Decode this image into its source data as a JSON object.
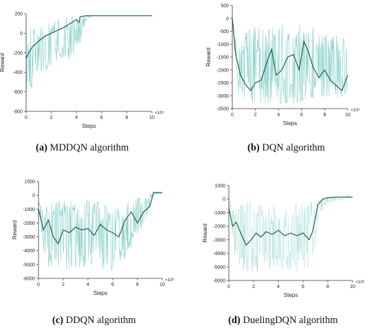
{
  "colors": {
    "noise": "#8fd3cc",
    "smooth": "#1f5d45",
    "axis": "#333333"
  },
  "chart_data": [
    {
      "type": "line",
      "caption_letter": "(a)",
      "caption_text": " MDDQN algorithm",
      "xlabel": "Steps",
      "ylabel": "Reward",
      "x_multiplier": "×10⁵",
      "xlim": [
        0,
        10
      ],
      "ylim": [
        -800,
        200
      ],
      "x_ticks": [
        "0",
        "2",
        "4",
        "6",
        "8",
        "10"
      ],
      "y_ticks": [
        "200",
        "0",
        "-200",
        "-400",
        "-600",
        "-800"
      ],
      "noise_range": {
        "x": [
          0.0,
          0.3,
          0.6,
          1.0,
          1.5,
          2.0,
          2.5,
          3.0,
          3.5,
          4.0,
          4.3,
          4.8,
          5.5,
          7.0,
          8.0,
          10.0
        ],
        "low": [
          -650,
          -780,
          -500,
          -450,
          -400,
          -350,
          -300,
          -250,
          -300,
          -200,
          -100,
          150,
          180,
          180,
          180,
          180
        ],
        "high": [
          40,
          80,
          60,
          80,
          100,
          120,
          140,
          160,
          180,
          180,
          180,
          180,
          180,
          180,
          180,
          180
        ]
      },
      "series": [
        {
          "x": [
            0.0,
            0.2,
            0.5,
            1.0,
            1.5,
            2.0,
            2.5,
            3.0,
            3.5,
            4.0,
            4.2,
            4.3,
            4.8,
            5.5,
            7.0,
            8.5,
            10.0
          ],
          "values": [
            -260,
            -200,
            -140,
            -80,
            -30,
            0,
            30,
            60,
            100,
            140,
            110,
            170,
            180,
            180,
            180,
            180,
            180
          ]
        }
      ]
    },
    {
      "type": "line",
      "caption_letter": "(b)",
      "caption_text": " DQN algorithm",
      "xlabel": "Steps",
      "ylabel": "Reward",
      "x_multiplier": "×10⁵",
      "xlim": [
        0,
        10
      ],
      "ylim": [
        -3500,
        500
      ],
      "x_ticks": [
        "0",
        "2",
        "4",
        "6",
        "8",
        "10"
      ],
      "y_ticks": [
        "500",
        "0",
        "-500",
        "-1000",
        "-1500",
        "-2000",
        "-2500",
        "-3000",
        "-3500"
      ],
      "noise_range": {
        "x": [
          0.0,
          0.5,
          1.0,
          2.0,
          3.0,
          4.0,
          5.0,
          6.0,
          7.0,
          8.0,
          9.0,
          10.0
        ],
        "low": [
          -200,
          -3000,
          -3100,
          -3300,
          -3400,
          -3300,
          -3400,
          -3300,
          -3200,
          -3100,
          -3100,
          -3000
        ],
        "high": [
          100,
          -1000,
          -500,
          -300,
          -200,
          -200,
          -300,
          -200,
          -300,
          -500,
          -600,
          -800
        ]
      },
      "series": [
        {
          "x": [
            0.0,
            0.3,
            0.7,
            1.2,
            1.6,
            2.0,
            2.5,
            3.0,
            3.4,
            3.8,
            4.3,
            4.8,
            5.3,
            5.8,
            6.2,
            6.6,
            7.0,
            7.5,
            8.0,
            8.5,
            9.0,
            9.5,
            10.0
          ],
          "values": [
            0,
            -1400,
            -2200,
            -2600,
            -2800,
            -2500,
            -2400,
            -1700,
            -1200,
            -2200,
            -2000,
            -1500,
            -1400,
            -2000,
            -900,
            -1300,
            -1900,
            -2300,
            -2000,
            -2400,
            -2600,
            -2800,
            -2200
          ]
        }
      ]
    },
    {
      "type": "line",
      "caption_letter": "(c)",
      "caption_text": " DDQN algorithm",
      "xlabel": "Steps",
      "ylabel": "Reward",
      "x_multiplier": "×10⁵",
      "xlim": [
        0,
        10
      ],
      "ylim": [
        -6000,
        1000
      ],
      "x_ticks": [
        "0",
        "2",
        "4",
        "6",
        "8",
        "10"
      ],
      "y_ticks": [
        "1000",
        "0",
        "-1000",
        "-2000",
        "-3000",
        "-4000",
        "-5000",
        "-6000"
      ],
      "noise_range": {
        "x": [
          0.0,
          0.5,
          1.0,
          2.0,
          3.0,
          4.0,
          5.0,
          6.0,
          7.0,
          8.0,
          8.8,
          9.3,
          10.0
        ],
        "low": [
          -1000,
          -5200,
          -5300,
          -5400,
          -5300,
          -5200,
          -5400,
          -5600,
          -4800,
          -3000,
          -1500,
          0,
          100
        ],
        "high": [
          -400,
          -500,
          -400,
          -300,
          -200,
          -300,
          -400,
          -500,
          -300,
          -200,
          100,
          200,
          200
        ]
      },
      "series": [
        {
          "x": [
            0.0,
            0.4,
            0.8,
            1.2,
            1.6,
            2.0,
            2.5,
            3.0,
            3.5,
            4.0,
            4.5,
            5.0,
            5.5,
            6.0,
            6.5,
            7.0,
            7.5,
            8.0,
            8.5,
            9.0,
            9.3,
            9.6,
            10.0
          ],
          "values": [
            -1000,
            -2500,
            -1800,
            -3000,
            -3500,
            -2500,
            -2700,
            -2300,
            -2500,
            -2400,
            -2900,
            -2100,
            -2500,
            -2700,
            -3000,
            -1800,
            -1200,
            -2000,
            -1200,
            -800,
            200,
            200,
            200
          ]
        }
      ]
    },
    {
      "type": "line",
      "caption_letter": "(d)",
      "caption_text": " DuelingDQN algorithm",
      "xlabel": "Steps",
      "ylabel": "Reward",
      "x_multiplier": "×10⁵",
      "xlim": [
        0,
        10
      ],
      "ylim": [
        -6000,
        1000
      ],
      "x_ticks": [
        "0",
        "2",
        "4",
        "6",
        "8",
        "10"
      ],
      "y_ticks": [
        "1000",
        "0",
        "-1000",
        "-2000",
        "-3000",
        "-4000",
        "-5000",
        "-6000"
      ],
      "noise_range": {
        "x": [
          0.0,
          0.5,
          1.0,
          2.0,
          3.0,
          4.0,
          5.0,
          6.0,
          6.8,
          7.2,
          7.8,
          8.5,
          10.0
        ],
        "low": [
          -500,
          -4800,
          -5300,
          -5500,
          -5200,
          -5300,
          -5400,
          -5600,
          -5000,
          -1500,
          -500,
          -200,
          100
        ],
        "high": [
          100,
          -200,
          -300,
          -200,
          -300,
          -500,
          -400,
          -300,
          -200,
          0,
          200,
          300,
          300
        ]
      },
      "series": [
        {
          "x": [
            0.0,
            0.3,
            0.6,
            1.0,
            1.4,
            1.8,
            2.2,
            2.6,
            3.0,
            3.5,
            4.0,
            4.5,
            5.0,
            5.5,
            6.0,
            6.5,
            6.8,
            7.2,
            7.6,
            8.0,
            9.0,
            10.0
          ],
          "values": [
            -700,
            -2000,
            -1700,
            -2600,
            -3400,
            -3000,
            -2500,
            -2800,
            -2400,
            -2600,
            -2300,
            -2700,
            -2500,
            -2700,
            -2500,
            -3000,
            -2300,
            -400,
            0,
            100,
            150,
            150
          ]
        }
      ]
    }
  ]
}
